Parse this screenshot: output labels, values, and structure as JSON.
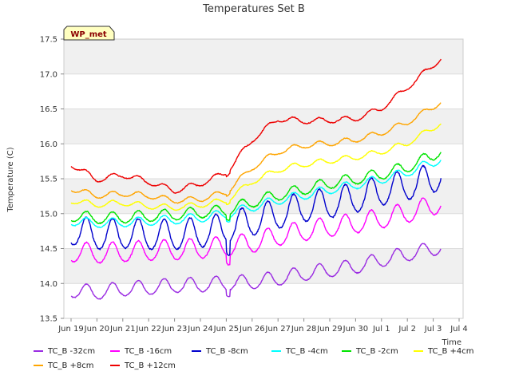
{
  "chart_data": {
    "type": "line",
    "title": "Temperatures Set B",
    "xlabel": "Time",
    "ylabel": "Temperature (C)",
    "badge": "WP_met",
    "ylim": [
      13.5,
      17.5
    ],
    "xlim": [
      0,
      16
    ],
    "y_ticks": [
      "13.5",
      "14.0",
      "14.5",
      "15.0",
      "15.5",
      "16.0",
      "16.5",
      "17.0",
      "17.5"
    ],
    "y_tick_values": [
      13.5,
      14.0,
      14.5,
      15.0,
      15.5,
      16.0,
      16.5,
      17.0,
      17.5
    ],
    "x_ticks": [
      "Jun 19",
      "Jun 20",
      "Jun 21",
      "Jun 22",
      "Jun 23",
      "Jun 24",
      "Jun 25",
      "Jun 26",
      "Jun 27",
      "Jun 28",
      "Jun 29",
      "Jun 30",
      "Jul 1",
      "Jul 2",
      "Jul 3",
      "Jul 4"
    ],
    "x_tick_values": [
      0,
      1,
      2,
      3,
      4,
      5,
      6,
      7,
      8,
      9,
      10,
      11,
      12,
      13,
      14,
      15
    ],
    "x_end": 14.3,
    "grid": true,
    "legend_position": "bottom",
    "series": [
      {
        "name": "TC_B -32cm",
        "color": "#9a2be2",
        "amp": 0.13,
        "noise": 0.012,
        "knots": [
          [
            0,
            13.88
          ],
          [
            1,
            13.85
          ],
          [
            2,
            13.9
          ],
          [
            3,
            13.92
          ],
          [
            4,
            13.95
          ],
          [
            5,
            13.96
          ],
          [
            6,
            13.98
          ],
          [
            7,
            14.0
          ],
          [
            8,
            14.05
          ],
          [
            9,
            14.12
          ],
          [
            10,
            14.17
          ],
          [
            11,
            14.22
          ],
          [
            12,
            14.32
          ],
          [
            13,
            14.4
          ],
          [
            14,
            14.47
          ],
          [
            14.3,
            14.52
          ]
        ]
      },
      {
        "name": "TC_B -16cm",
        "color": "#ff00ff",
        "amp": 0.18,
        "noise": 0.015,
        "knots": [
          [
            0,
            14.42
          ],
          [
            1,
            14.4
          ],
          [
            2,
            14.42
          ],
          [
            3,
            14.44
          ],
          [
            4,
            14.45
          ],
          [
            5,
            14.47
          ],
          [
            6,
            14.5
          ],
          [
            7,
            14.55
          ],
          [
            8,
            14.65
          ],
          [
            9,
            14.72
          ],
          [
            10,
            14.78
          ],
          [
            11,
            14.83
          ],
          [
            12,
            14.9
          ],
          [
            13,
            14.98
          ],
          [
            14,
            15.08
          ],
          [
            14.3,
            15.15
          ]
        ]
      },
      {
        "name": "TC_B -8cm",
        "color": "#0000cd",
        "amp": 0.27,
        "noise": 0.02,
        "knots": [
          [
            0,
            14.72
          ],
          [
            1,
            14.65
          ],
          [
            2,
            14.67
          ],
          [
            3,
            14.65
          ],
          [
            4,
            14.65
          ],
          [
            5,
            14.68
          ],
          [
            6,
            14.75
          ],
          [
            7,
            14.85
          ],
          [
            8,
            14.95
          ],
          [
            9,
            15.05
          ],
          [
            10,
            15.1
          ],
          [
            11,
            15.18
          ],
          [
            12,
            15.28
          ],
          [
            13,
            15.36
          ],
          [
            14,
            15.45
          ],
          [
            14.3,
            15.55
          ]
        ]
      },
      {
        "name": "TC_B -4cm",
        "color": "#00ffff",
        "amp": 0.08,
        "noise": 0.012,
        "knots": [
          [
            0,
            14.88
          ],
          [
            1,
            14.85
          ],
          [
            2,
            14.86
          ],
          [
            3,
            14.88
          ],
          [
            4,
            14.9
          ],
          [
            5,
            14.93
          ],
          [
            6,
            14.98
          ],
          [
            7,
            15.08
          ],
          [
            8,
            15.18
          ],
          [
            9,
            15.25
          ],
          [
            10,
            15.33
          ],
          [
            11,
            15.4
          ],
          [
            12,
            15.48
          ],
          [
            13,
            15.58
          ],
          [
            14,
            15.72
          ],
          [
            14.3,
            15.78
          ]
        ]
      },
      {
        "name": "TC_B -2cm",
        "color": "#00e400",
        "amp": 0.1,
        "noise": 0.015,
        "knots": [
          [
            0,
            14.95
          ],
          [
            1,
            14.92
          ],
          [
            2,
            14.93
          ],
          [
            3,
            14.95
          ],
          [
            4,
            14.97
          ],
          [
            5,
            15.0
          ],
          [
            6,
            15.03
          ],
          [
            7,
            15.15
          ],
          [
            8,
            15.25
          ],
          [
            9,
            15.33
          ],
          [
            10,
            15.42
          ],
          [
            11,
            15.48
          ],
          [
            12,
            15.55
          ],
          [
            13,
            15.65
          ],
          [
            14,
            15.82
          ],
          [
            14.3,
            15.9
          ]
        ]
      },
      {
        "name": "TC_B +4cm",
        "color": "#ffff00",
        "amp": 0.05,
        "noise": 0.01,
        "knots": [
          [
            0,
            15.18
          ],
          [
            1,
            15.12
          ],
          [
            2,
            15.15
          ],
          [
            3,
            15.1
          ],
          [
            4,
            15.08
          ],
          [
            5,
            15.12
          ],
          [
            6,
            15.18
          ],
          [
            7,
            15.45
          ],
          [
            8,
            15.62
          ],
          [
            9,
            15.7
          ],
          [
            10,
            15.75
          ],
          [
            11,
            15.8
          ],
          [
            12,
            15.88
          ],
          [
            13,
            16.0
          ],
          [
            14,
            16.22
          ],
          [
            14.3,
            16.3
          ]
        ]
      },
      {
        "name": "TC_B +8cm",
        "color": "#ffa500",
        "amp": 0.05,
        "noise": 0.01,
        "knots": [
          [
            0,
            15.35
          ],
          [
            1,
            15.25
          ],
          [
            2,
            15.28
          ],
          [
            3,
            15.25
          ],
          [
            4,
            15.18
          ],
          [
            5,
            15.2
          ],
          [
            6,
            15.3
          ],
          [
            7,
            15.65
          ],
          [
            8,
            15.88
          ],
          [
            9,
            15.97
          ],
          [
            10,
            16.0
          ],
          [
            11,
            16.05
          ],
          [
            12,
            16.15
          ],
          [
            13,
            16.3
          ],
          [
            14,
            16.52
          ],
          [
            14.3,
            16.6
          ]
        ]
      },
      {
        "name": "TC_B +12cm",
        "color": "#ee0000",
        "amp": 0.05,
        "noise": 0.012,
        "knots": [
          [
            0,
            15.7
          ],
          [
            1,
            15.48
          ],
          [
            2,
            15.55
          ],
          [
            3,
            15.45
          ],
          [
            4,
            15.32
          ],
          [
            5,
            15.42
          ],
          [
            6,
            15.58
          ],
          [
            7,
            16.05
          ],
          [
            8,
            16.35
          ],
          [
            9,
            16.32
          ],
          [
            10,
            16.33
          ],
          [
            11,
            16.35
          ],
          [
            12,
            16.5
          ],
          [
            13,
            16.8
          ],
          [
            14,
            17.12
          ],
          [
            14.3,
            17.22
          ]
        ]
      }
    ]
  }
}
